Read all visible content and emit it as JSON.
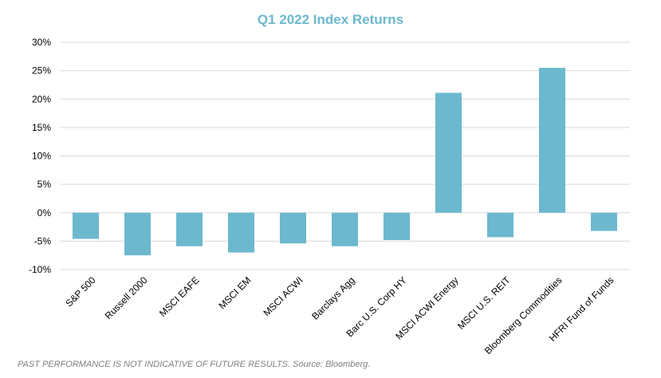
{
  "colors": {
    "bar": "#6bb8cf",
    "title": "#6bb8cf",
    "grid": "#d9d9d9",
    "text": "#000000",
    "footnote": "#808080"
  },
  "chart_data": {
    "type": "bar",
    "title": "Q1 2022 Index Returns",
    "categories": [
      "S&P 500",
      "Russell 2000",
      "MSCI EAFE",
      "MSCI EM",
      "MSCI ACWI",
      "Barclays Agg",
      "Barc U.S. Corp HY",
      "MSCI ACWI Energy",
      "MSCI U.S. REIT",
      "Bloomberg Commodities",
      "HFRI Fund of Funds"
    ],
    "values": [
      -4.6,
      -7.5,
      -5.9,
      -7.0,
      -5.4,
      -5.9,
      -4.8,
      21.1,
      -4.3,
      25.5,
      -3.2
    ],
    "ylim": [
      -10,
      30
    ],
    "yticks": [
      "30%",
      "25%",
      "20%",
      "15%",
      "10%",
      "5%",
      "0%",
      "-5%",
      "-10%"
    ],
    "xlabel": "",
    "ylabel": "",
    "grid": true
  },
  "footnote": "PAST PERFORMANCE IS NOT INDICATIVE OF FUTURE RESULTS. Source: Bloomberg."
}
